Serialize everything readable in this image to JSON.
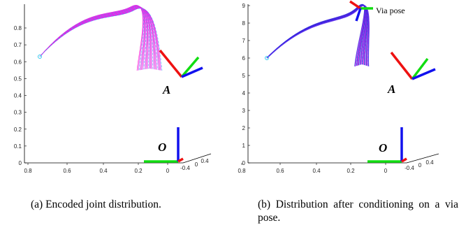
{
  "figure": {
    "panels": [
      {
        "id": "a",
        "caption": "(a) Encoded joint distribution.",
        "frame_labels": {
          "origin": "O",
          "target": "A"
        },
        "annotation": "",
        "y_ticks": [
          "0",
          "0.1",
          "0.2",
          "0.3",
          "0.4",
          "0.5",
          "0.6",
          "0.7",
          "0.8"
        ],
        "x_ticks": [
          "0.8",
          "0.6",
          "0.4",
          "0.2",
          "0"
        ],
        "depth_ticks": [
          "-0.4",
          "0",
          "0.4"
        ]
      },
      {
        "id": "b",
        "caption": "(b) Distribution after conditioning on a via pose.",
        "frame_labels": {
          "origin": "O",
          "target": "A"
        },
        "annotation": "Via pose",
        "y_ticks": [
          "0",
          "1",
          "2",
          "3",
          "4",
          "5",
          "6",
          "7",
          "8",
          "9"
        ],
        "x_ticks": [
          "0.8",
          "0.6",
          "0.4",
          "0.2",
          "0"
        ],
        "depth_ticks": [
          "-0.4",
          "0",
          "0.4"
        ]
      }
    ]
  },
  "colors": {
    "trajectory_magenta": "#ff00cc",
    "trajectory_cyan": "#33ccee",
    "trajectory_blue": "#2222dd",
    "frame_x": "#ee1111",
    "frame_y": "#11dd11",
    "frame_z": "#1111ee"
  }
}
